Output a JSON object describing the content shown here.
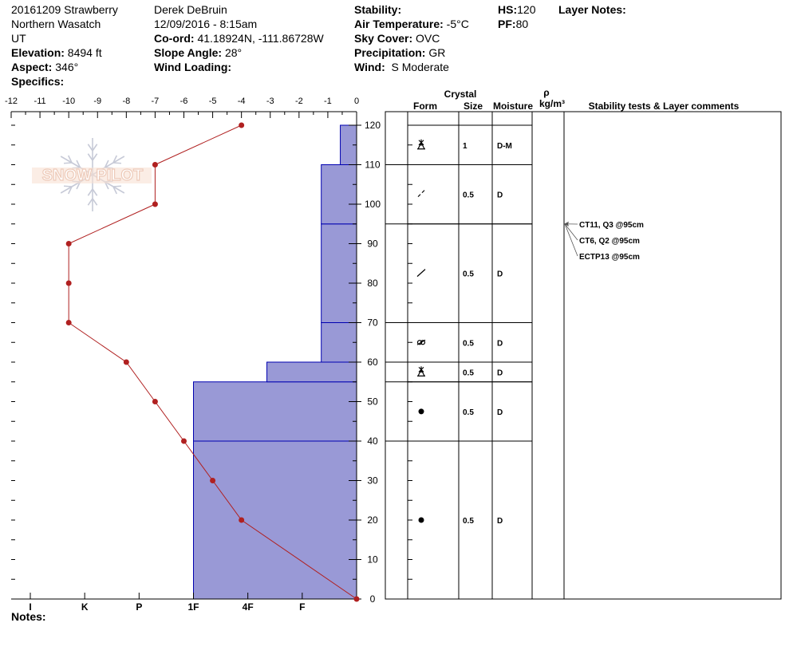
{
  "site": {
    "name": "20161209 Strawberry",
    "range": "Northern Wasatch",
    "state": "UT",
    "elevation_label": "Elevation:",
    "elevation": "8494 ft",
    "aspect_label": "Aspect:",
    "aspect": "346°",
    "specifics_label": "Specifics:"
  },
  "observer": {
    "name": "Derek DeBruin",
    "datetime": "12/09/2016 - 8:15am",
    "coord_label": "Co-ord:",
    "coord": "41.18924N, -111.86728W",
    "slope_label": "Slope Angle:",
    "slope": "28°",
    "wind_loading_label": "Wind Loading:"
  },
  "conditions": {
    "stability_label": "Stability:",
    "air_temp_label": "Air Temperature:",
    "air_temp": "-5°C",
    "sky_label": "Sky Cover:",
    "sky": "OVC",
    "precip_label": "Precipitation:",
    "precip": "GR",
    "wind_label": "Wind:",
    "wind": "S Moderate"
  },
  "snowpack": {
    "hs_label": "HS:",
    "hs": "120",
    "pf_label": "PF:",
    "pf": "80",
    "layer_notes_label": "Layer Notes:"
  },
  "notes_label": "Notes:",
  "logo_text": "SNOW PILOT",
  "colors": {
    "hardness_fill": "#9999d6",
    "hardness_line": "#0000b0",
    "temp_line": "#b02020"
  },
  "chart_data": {
    "type": "snow_profile",
    "temperature_axis": {
      "ticks": [
        -12,
        -11,
        -10,
        -9,
        -8,
        -7,
        -6,
        -5,
        -4,
        -3,
        -2,
        -1,
        0
      ],
      "range": [
        -12,
        0
      ]
    },
    "height_axis": {
      "ticks": [
        0,
        10,
        20,
        30,
        40,
        50,
        60,
        70,
        80,
        90,
        100,
        110,
        120
      ],
      "range": [
        0,
        120
      ]
    },
    "hardness_axis": {
      "labels": [
        "I",
        "K",
        "P",
        "1F",
        "4F",
        "F"
      ],
      "values": [
        6,
        5,
        4,
        3,
        2,
        1
      ]
    },
    "temperature_profile": {
      "height": [
        0,
        20,
        30,
        40,
        50,
        60,
        70,
        80,
        90,
        100,
        110,
        120
      ],
      "temp": [
        0,
        -4,
        -5,
        -6,
        -7,
        -8,
        -10,
        -10,
        -10,
        -7,
        -7,
        -4
      ]
    },
    "hardness_profile": [
      {
        "bottom": 0,
        "top": 40,
        "hardness": 3.0
      },
      {
        "bottom": 40,
        "top": 55,
        "hardness": 3.0
      },
      {
        "bottom": 55,
        "top": 60,
        "hardness": 1.65
      },
      {
        "bottom": 60,
        "top": 70,
        "hardness": 0.65
      },
      {
        "bottom": 70,
        "top": 95,
        "hardness": 0.65
      },
      {
        "bottom": 95,
        "top": 110,
        "hardness": 0.65
      },
      {
        "bottom": 110,
        "top": 120,
        "hardness": 0.3
      }
    ],
    "table_headers": {
      "crystal": "Crystal",
      "form": "Form",
      "size": "Size",
      "moisture": "Moisture",
      "rho": "ρ",
      "density": "kg/m³",
      "comments": "Stability tests & Layer comments"
    },
    "layers": [
      {
        "bottom": 110,
        "top": 120,
        "form_icon": "surface-hoar-icon",
        "size": "1",
        "moisture": "D-M"
      },
      {
        "bottom": 95,
        "top": 110,
        "form_icon": "precipitation-particles-icon",
        "size": "0.5",
        "moisture": "D"
      },
      {
        "bottom": 70,
        "top": 95,
        "form_icon": "decomposing-fragments-icon",
        "size": "0.5",
        "moisture": "D"
      },
      {
        "bottom": 60,
        "top": 70,
        "form_icon": "mixed-forms-icon",
        "size": "0.5",
        "moisture": "D"
      },
      {
        "bottom": 55,
        "top": 60,
        "form_icon": "surface-hoar-icon",
        "size": "0.5",
        "moisture": "D"
      },
      {
        "bottom": 40,
        "top": 55,
        "form_icon": "rounded-grains-icon",
        "size": "0.5",
        "moisture": "D"
      },
      {
        "bottom": 0,
        "top": 40,
        "form_icon": "rounded-grains-icon",
        "size": "0.5",
        "moisture": "D"
      }
    ],
    "stability_tests": [
      {
        "height": 95,
        "text": "CT11, Q3 @95cm"
      },
      {
        "height": 95,
        "text": "CT6, Q2 @95cm"
      },
      {
        "height": 95,
        "text": "ECTP13 @95cm"
      }
    ]
  }
}
